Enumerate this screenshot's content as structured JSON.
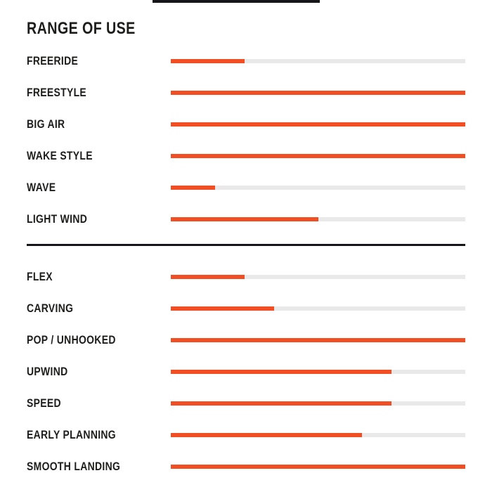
{
  "page": {
    "title": "RANGE OF USE"
  },
  "colors": {
    "bar_fill": "#F14E23",
    "bar_track": "#E9E9E9",
    "text": "#1D1D1B",
    "divider": "#16161A"
  },
  "chart_data": {
    "type": "bar",
    "orientation": "horizontal",
    "title": "RANGE OF USE",
    "value_range": [
      0,
      100
    ],
    "legend": "none",
    "grid": false,
    "groups": [
      {
        "items": [
          {
            "label": "FREERIDE",
            "value": 25
          },
          {
            "label": "FREESTYLE",
            "value": 100
          },
          {
            "label": "BIG AIR",
            "value": 100
          },
          {
            "label": "WAKE STYLE",
            "value": 100
          },
          {
            "label": "WAVE",
            "value": 15
          },
          {
            "label": "LIGHT WIND",
            "value": 50
          }
        ]
      },
      {
        "items": [
          {
            "label": "FLEX",
            "value": 25
          },
          {
            "label": "CARVING",
            "value": 35
          },
          {
            "label": "POP / UNHOOKED",
            "value": 100
          },
          {
            "label": "UPWIND",
            "value": 75
          },
          {
            "label": "SPEED",
            "value": 75
          },
          {
            "label": "EARLY PLANNING",
            "value": 65
          },
          {
            "label": "SMOOTH LANDING",
            "value": 100
          }
        ]
      }
    ]
  }
}
